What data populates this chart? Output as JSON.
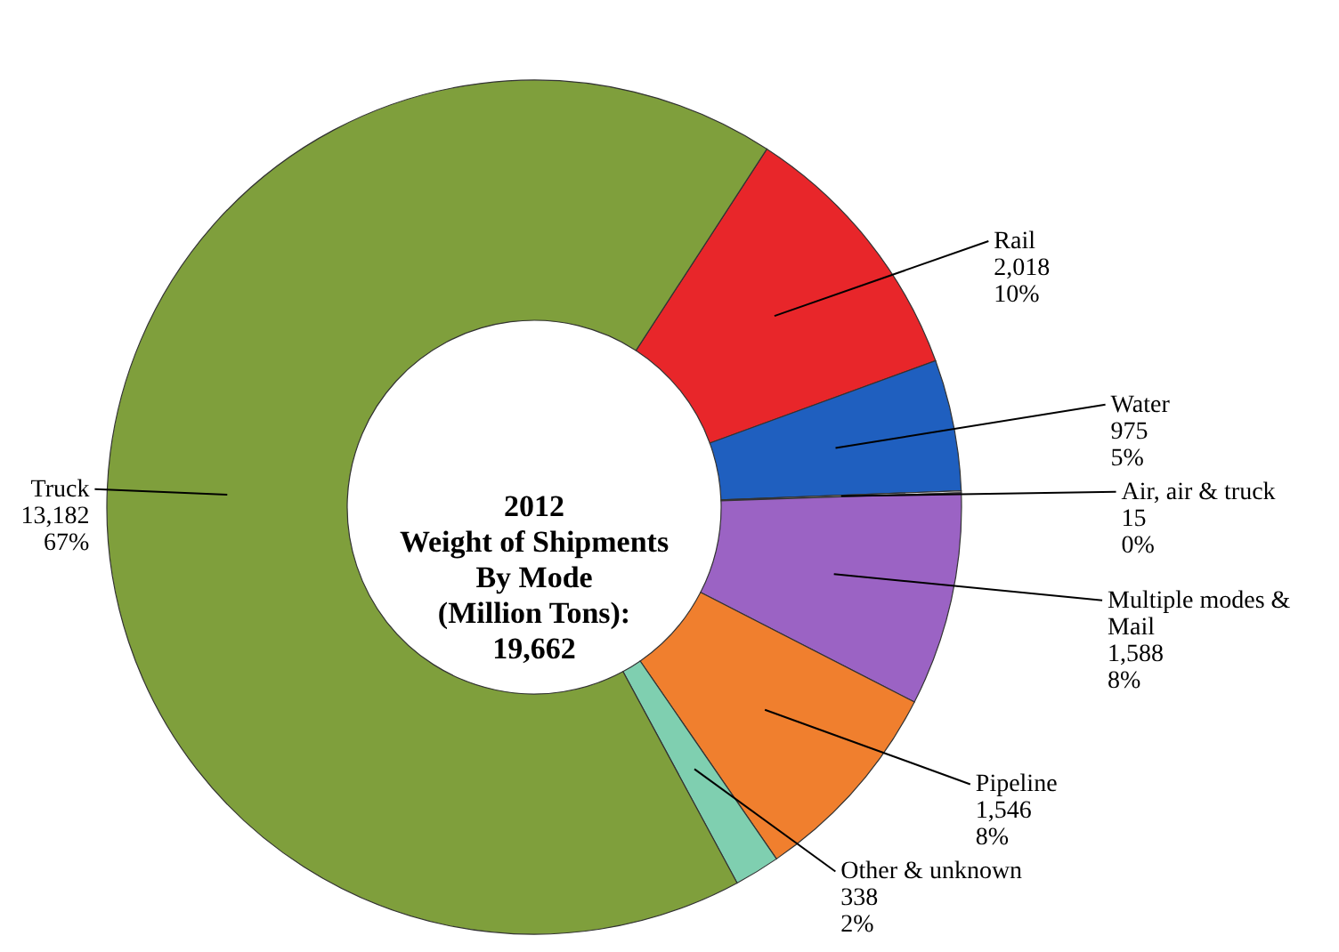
{
  "chart_data": {
    "type": "donut",
    "title": "2012\nWeight of Shipments\nBy Mode\n(Million Tons):\n19,662",
    "categories": [
      "Rail",
      "Water",
      "Air, air & truck",
      "Multiple modes & Mail",
      "Pipeline",
      "Other & unknown",
      "Truck"
    ],
    "values": [
      2018,
      975,
      15,
      1588,
      1546,
      338,
      13182
    ],
    "value_labels": [
      "2,018\n10%",
      "975\n5%",
      "15\n0%",
      "1,588\n8%",
      "1,546\n8%",
      "338\n2%",
      "13,182\n67%"
    ],
    "colors": [
      "#e8262a",
      "#1f5fbf",
      "#d9d9d9",
      "#9b63c4",
      "#f07f2e",
      "#7fcfb0",
      "#7f9f3c"
    ]
  }
}
